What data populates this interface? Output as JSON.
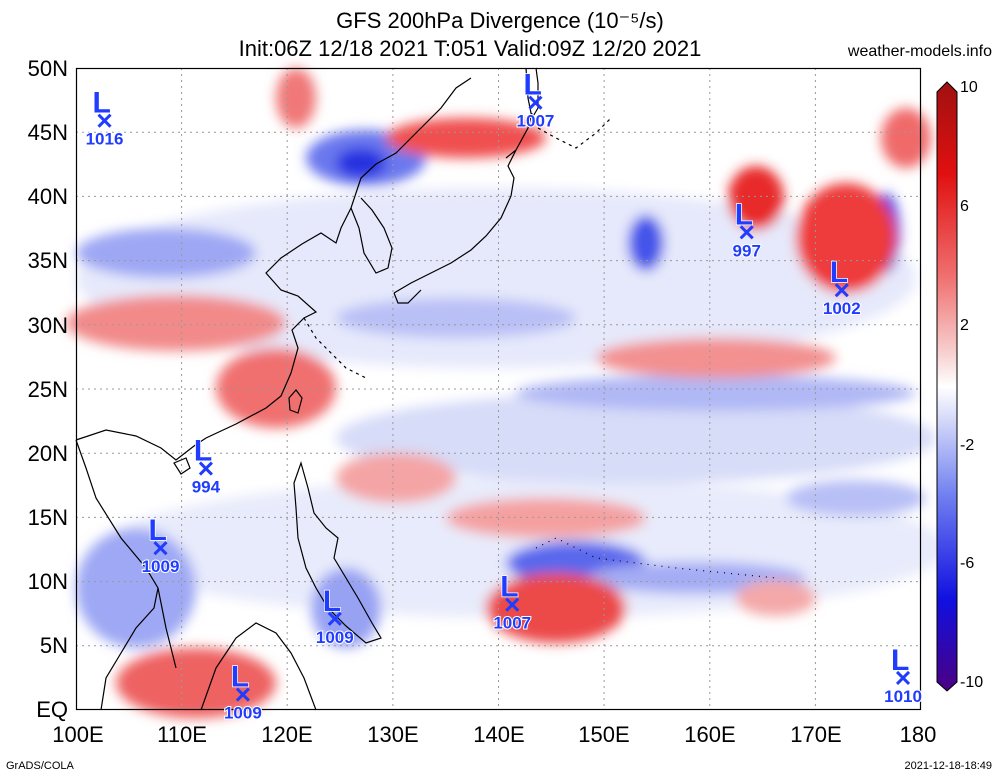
{
  "header": {
    "title_line1": "GFS 200hPa Divergence (10⁻⁵/s)",
    "title_line2": "Init:06Z 12/18 2021 T:051 Valid:09Z 12/20 2021",
    "site": "weather-models.info"
  },
  "footer": {
    "left": "GrADS/COLA",
    "right": "2021-12-18-18:49"
  },
  "axes": {
    "lat_labels": [
      "50N",
      "45N",
      "40N",
      "35N",
      "30N",
      "25N",
      "20N",
      "15N",
      "10N",
      "5N",
      "EQ"
    ],
    "lon_labels": [
      "100E",
      "110E",
      "120E",
      "130E",
      "140E",
      "150E",
      "160E",
      "170E",
      "180"
    ]
  },
  "colorbar": {
    "labels": [
      "10",
      "6",
      "2",
      "-2",
      "-6",
      "-10"
    ],
    "colors": [
      "#4b0082",
      "#1010e0",
      "#6f7ff0",
      "#c8d0f8",
      "#ffffff",
      "#f8c8c8",
      "#f07070",
      "#e01010",
      "#a01010"
    ]
  },
  "colors": {
    "low_marker": "#1f3cff",
    "divergence_pos": "#e62020",
    "divergence_neg": "#2030e0"
  },
  "lows": [
    {
      "pressure": "1016",
      "lon": 102.7,
      "lat": 45.9
    },
    {
      "pressure": "1007",
      "lon": 143.5,
      "lat": 47.3
    },
    {
      "pressure": "997",
      "lon": 163.5,
      "lat": 37.2
    },
    {
      "pressure": "1002",
      "lon": 172.5,
      "lat": 32.7
    },
    {
      "pressure": "994",
      "lon": 112.3,
      "lat": 18.8
    },
    {
      "pressure": "1009",
      "lon": 108.0,
      "lat": 12.6
    },
    {
      "pressure": "1009",
      "lon": 124.5,
      "lat": 7.1
    },
    {
      "pressure": "1007",
      "lon": 141.3,
      "lat": 8.2
    },
    {
      "pressure": "1009",
      "lon": 115.8,
      "lat": 1.2
    },
    {
      "pressure": "1010",
      "lon": 178.3,
      "lat": 2.5
    }
  ]
}
